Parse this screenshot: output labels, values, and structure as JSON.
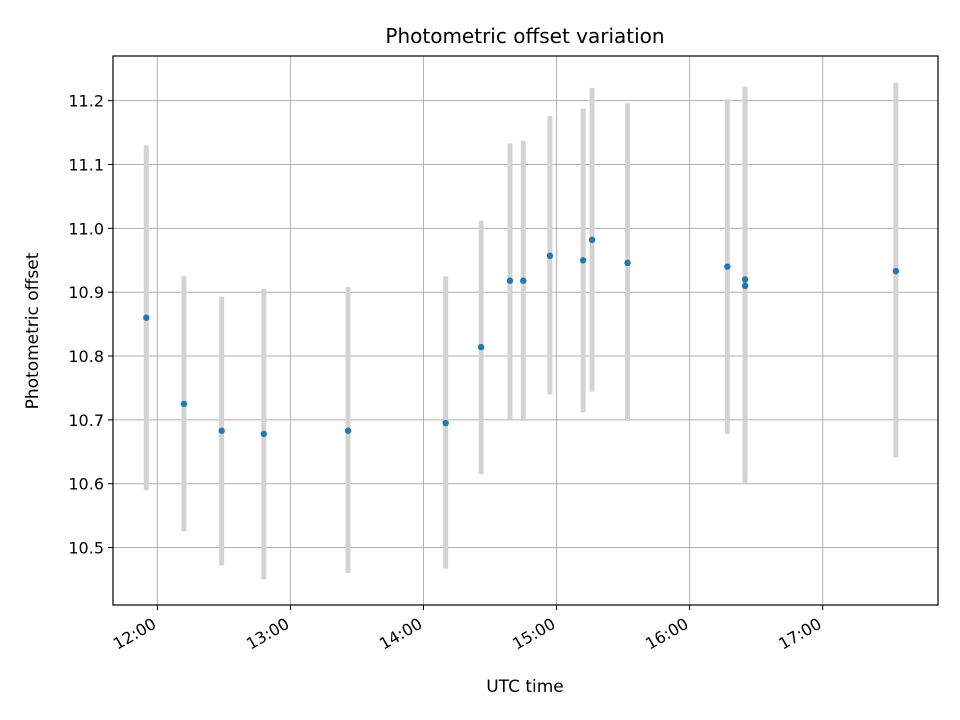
{
  "chart_data": {
    "type": "scatter",
    "title": "Photometric offset variation",
    "xlabel": "UTC time",
    "ylabel": "Photometric offset",
    "x_unit": "UTC time of day (HH:MM)",
    "xlim": [
      "11:40",
      "17:52"
    ],
    "ylim": [
      10.41,
      11.27
    ],
    "x_ticks": [
      "12:00",
      "13:00",
      "14:00",
      "15:00",
      "16:00",
      "17:00"
    ],
    "y_ticks": [
      10.5,
      10.6,
      10.7,
      10.8,
      10.9,
      11.0,
      11.1,
      11.2
    ],
    "y_tick_labels": [
      "10.5",
      "10.6",
      "10.7",
      "10.8",
      "10.9",
      "11.0",
      "11.1",
      "11.2"
    ],
    "grid": true,
    "x_tick_rotation": "30 degrees",
    "colors": {
      "points": "#1f77b4",
      "error_bars": "#d3d3d3",
      "grid": "#b0b0b0",
      "axes": "#000000"
    },
    "points": [
      {
        "time": "11:55",
        "y": 10.86,
        "y_low": 10.59,
        "y_high": 11.13
      },
      {
        "time": "12:12",
        "y": 10.725,
        "y_low": 10.525,
        "y_high": 10.925
      },
      {
        "time": "12:29",
        "y": 10.683,
        "y_low": 10.472,
        "y_high": 10.893
      },
      {
        "time": "12:48",
        "y": 10.678,
        "y_low": 10.45,
        "y_high": 10.905
      },
      {
        "time": "13:26",
        "y": 10.683,
        "y_low": 10.46,
        "y_high": 10.908
      },
      {
        "time": "14:10",
        "y": 10.695,
        "y_low": 10.467,
        "y_high": 10.925
      },
      {
        "time": "14:26",
        "y": 10.814,
        "y_low": 10.615,
        "y_high": 11.012
      },
      {
        "time": "14:39",
        "y": 10.918,
        "y_low": 10.7,
        "y_high": 11.133
      },
      {
        "time": "14:45",
        "y": 10.918,
        "y_low": 10.698,
        "y_high": 11.137
      },
      {
        "time": "14:57",
        "y": 10.957,
        "y_low": 10.74,
        "y_high": 11.176
      },
      {
        "time": "15:12",
        "y": 10.95,
        "y_low": 10.712,
        "y_high": 11.188
      },
      {
        "time": "15:16",
        "y": 10.982,
        "y_low": 10.744,
        "y_high": 11.22
      },
      {
        "time": "15:32",
        "y": 10.946,
        "y_low": 10.698,
        "y_high": 11.196
      },
      {
        "time": "16:17",
        "y": 10.94,
        "y_low": 10.678,
        "y_high": 11.202
      },
      {
        "time": "16:25",
        "y": 10.92,
        "y_low": 10.617,
        "y_high": 11.222
      },
      {
        "time": "16:25",
        "y": 10.91,
        "y_low": 10.6,
        "y_high": 11.22
      },
      {
        "time": "17:33",
        "y": 10.933,
        "y_low": 10.641,
        "y_high": 11.228
      }
    ]
  }
}
